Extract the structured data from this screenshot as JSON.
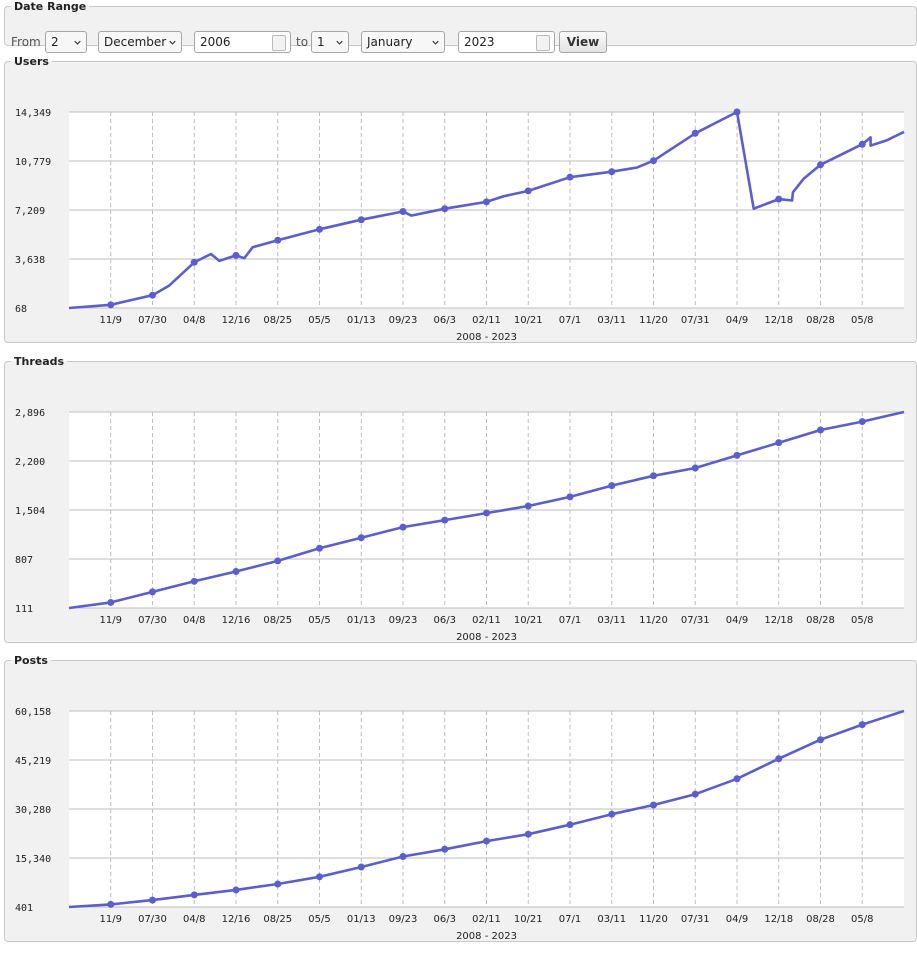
{
  "date_range": {
    "legend": "Date Range",
    "from_label": "From",
    "from_day": "2",
    "from_month": "December",
    "from_year": "2006",
    "to_label": "to",
    "to_day": "1",
    "to_month": "January",
    "to_year": "2023",
    "view_button": "View"
  },
  "colors": {
    "series": "#5a5ed0",
    "grid": "#bdbdbd",
    "panel": "#f1f1f1"
  },
  "chart_data": [
    {
      "type": "line",
      "title": "Users",
      "xlabel": "2008 - 2023",
      "ylim": [
        68,
        14349
      ],
      "ytick_labels": [
        "14,349",
        "10,779",
        "7,209",
        "3,638",
        "68"
      ],
      "ytick_values": [
        14349,
        10779,
        7209,
        3638,
        68
      ],
      "xtick_labels": [
        "11/9",
        "07/30",
        "04/8",
        "12/16",
        "08/25",
        "05/5",
        "01/13",
        "09/23",
        "06/3",
        "02/11",
        "10/21",
        "07/1",
        "03/11",
        "11/20",
        "07/31",
        "04/9",
        "12/18",
        "08/28",
        "05/8"
      ],
      "grid": true,
      "x": [
        0,
        0.05,
        0.1,
        0.12,
        0.15,
        0.17,
        0.18,
        0.2,
        0.21,
        0.22,
        0.25,
        0.3,
        0.35,
        0.4,
        0.41,
        0.45,
        0.5,
        0.52,
        0.55,
        0.6,
        0.65,
        0.68,
        0.7,
        0.75,
        0.8,
        0.82,
        0.85,
        0.866,
        0.867,
        0.88,
        0.9,
        0.95,
        0.96,
        0.96,
        0.98,
        0.99,
        1.0
      ],
      "values": [
        68,
        300,
        1000,
        1700,
        3400,
        4000,
        3500,
        3900,
        3700,
        4500,
        5000,
        5800,
        6500,
        7100,
        6800,
        7300,
        7800,
        8200,
        8600,
        9600,
        10000,
        10300,
        10800,
        12800,
        14349,
        7300,
        8000,
        7900,
        8500,
        9500,
        10500,
        12000,
        12500,
        11900,
        12300,
        12600,
        12900
      ]
    },
    {
      "type": "line",
      "title": "Threads",
      "xlabel": "2008 - 2023",
      "ylim": [
        111,
        2896
      ],
      "ytick_labels": [
        "2,896",
        "2,200",
        "1,504",
        "807",
        "111"
      ],
      "ytick_values": [
        2896,
        2200,
        1504,
        807,
        111
      ],
      "xtick_labels": [
        "11/9",
        "07/30",
        "04/8",
        "12/16",
        "08/25",
        "05/5",
        "01/13",
        "09/23",
        "06/3",
        "02/11",
        "10/21",
        "07/1",
        "03/11",
        "11/20",
        "07/31",
        "04/9",
        "12/18",
        "08/28",
        "05/8"
      ],
      "grid": true,
      "x": [
        0,
        0.05,
        0.1,
        0.15,
        0.2,
        0.25,
        0.3,
        0.35,
        0.4,
        0.45,
        0.5,
        0.55,
        0.6,
        0.65,
        0.7,
        0.75,
        0.8,
        0.85,
        0.9,
        0.95,
        1.0
      ],
      "values": [
        111,
        190,
        340,
        490,
        630,
        780,
        960,
        1110,
        1260,
        1360,
        1460,
        1560,
        1690,
        1850,
        1990,
        2100,
        2280,
        2460,
        2640,
        2760,
        2896
      ]
    },
    {
      "type": "line",
      "title": "Posts",
      "xlabel": "2008 - 2023",
      "ylim": [
        401,
        60158
      ],
      "ytick_labels": [
        "60,158",
        "45,219",
        "30,280",
        "15,340",
        "401"
      ],
      "ytick_values": [
        60158,
        45219,
        30280,
        15340,
        401
      ],
      "xtick_labels": [
        "11/9",
        "07/30",
        "04/8",
        "12/16",
        "08/25",
        "05/5",
        "01/13",
        "09/23",
        "06/3",
        "02/11",
        "10/21",
        "07/1",
        "03/11",
        "11/20",
        "07/31",
        "04/9",
        "12/18",
        "08/28",
        "05/8"
      ],
      "grid": true,
      "x": [
        0,
        0.05,
        0.1,
        0.15,
        0.2,
        0.25,
        0.3,
        0.35,
        0.4,
        0.45,
        0.5,
        0.55,
        0.6,
        0.65,
        0.7,
        0.75,
        0.8,
        0.85,
        0.9,
        0.95,
        1.0
      ],
      "values": [
        401,
        1200,
        2500,
        4100,
        5600,
        7400,
        9600,
        12600,
        15800,
        18000,
        20500,
        22600,
        25500,
        28700,
        31500,
        34800,
        39500,
        45600,
        51400,
        56000,
        60158
      ]
    }
  ]
}
